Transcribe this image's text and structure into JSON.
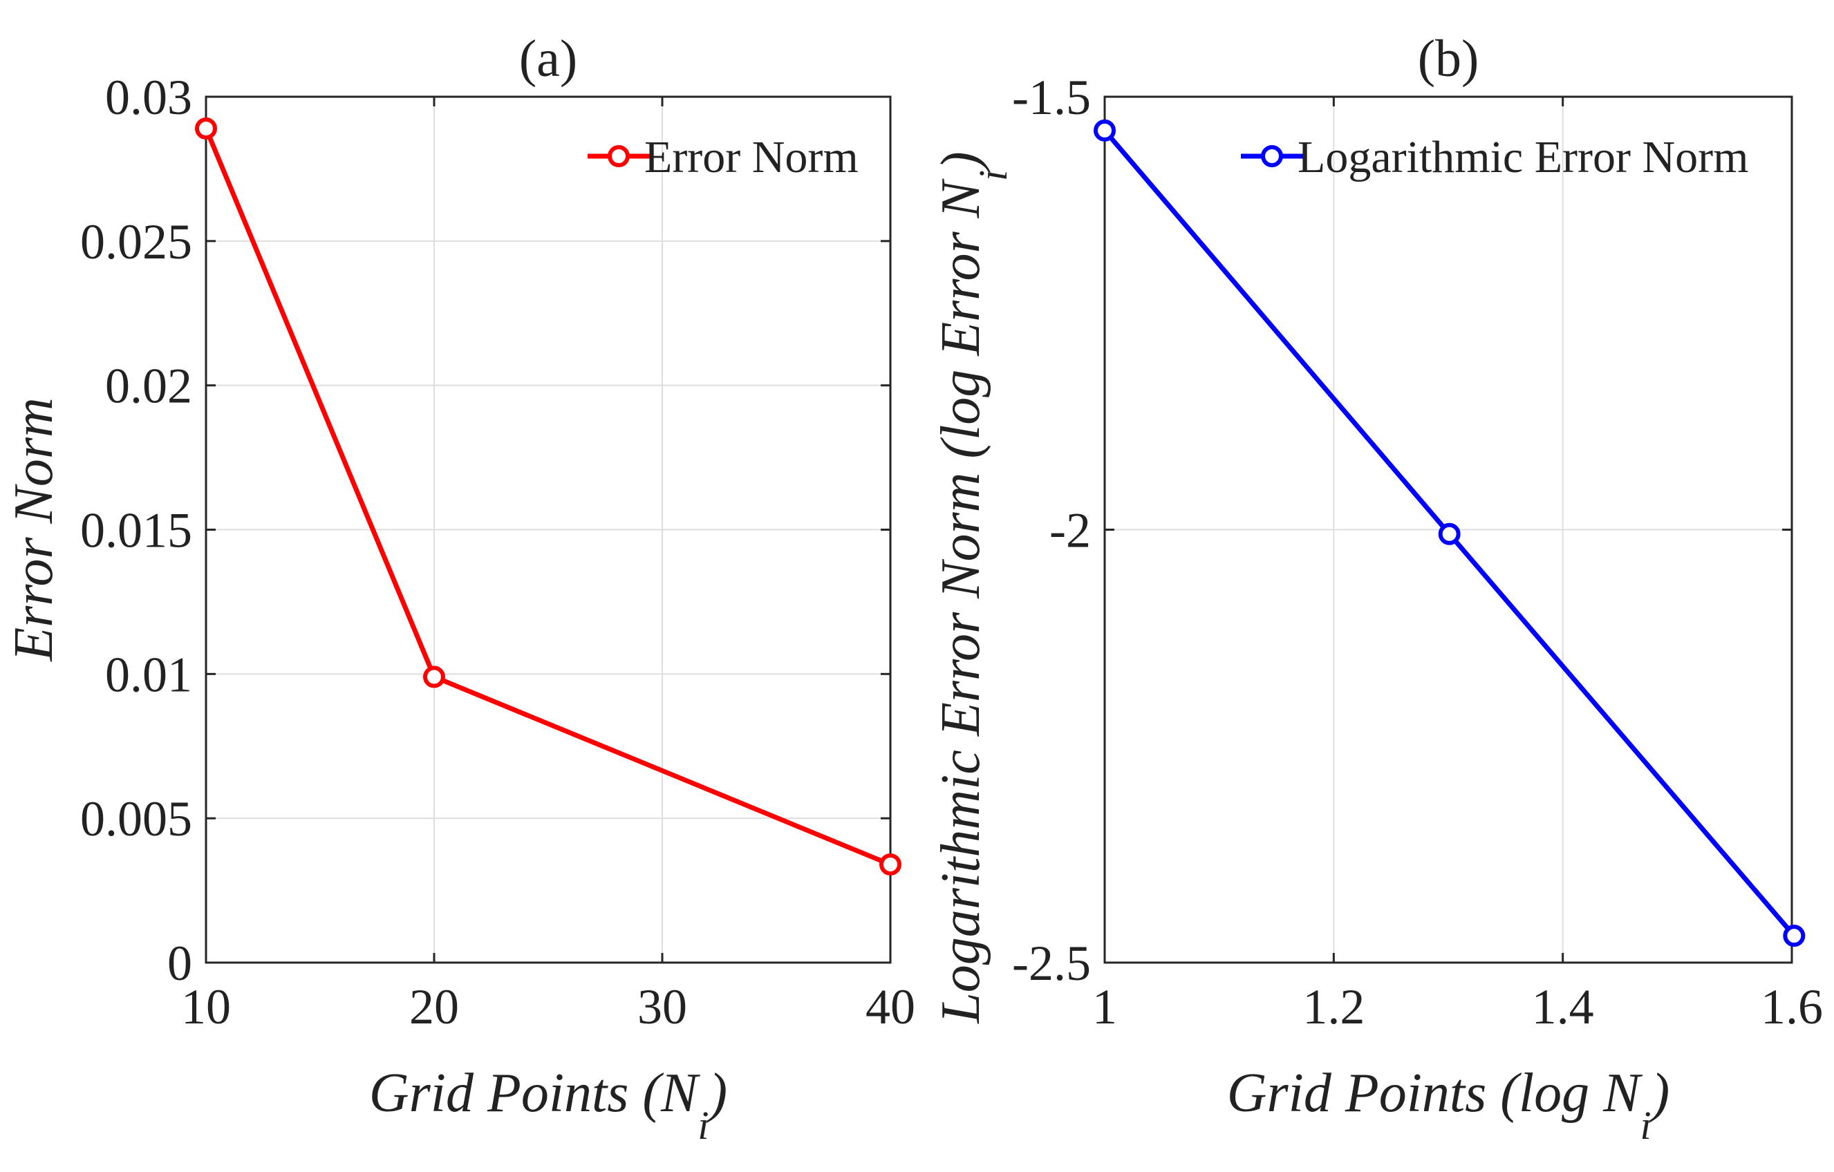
{
  "chart_data": [
    {
      "type": "line",
      "title": "(a)",
      "xlabel": "Grid Points (N",
      "xlabel_sub": "i",
      "xlabel_end": ")",
      "ylabel": "Error Norm",
      "xlim": [
        10,
        40
      ],
      "ylim": [
        0,
        0.03
      ],
      "xticks": [
        10,
        20,
        30,
        40
      ],
      "xtick_labels": [
        "10",
        "20",
        "30",
        "40"
      ],
      "yticks": [
        0,
        0.005,
        0.01,
        0.015,
        0.02,
        0.025,
        0.03
      ],
      "ytick_labels": [
        "0",
        "0.005",
        "0.01",
        "0.015",
        "0.02",
        "0.025",
        "0.03"
      ],
      "grid": true,
      "legend_position": "top-right",
      "series": [
        {
          "name": "Error Norm",
          "color": "#ff0000",
          "x": [
            10,
            20,
            40
          ],
          "y": [
            0.0289,
            0.0099,
            0.0034
          ]
        }
      ]
    },
    {
      "type": "line",
      "title": "(b)",
      "xlabel": "Grid Points (log N",
      "xlabel_sub": "i",
      "xlabel_end": ")",
      "ylabel": "Logarithmic Error Norm (log Error N",
      "ylabel_sub": "i",
      "ylabel_end": ")",
      "xlim": [
        1,
        1.6
      ],
      "ylim": [
        -2.5,
        -1.5
      ],
      "xticks": [
        1,
        1.2,
        1.4,
        1.6
      ],
      "xtick_labels": [
        "1",
        "1.2",
        "1.4",
        "1.6"
      ],
      "yticks": [
        -2.5,
        -2,
        -1.5
      ],
      "ytick_labels": [
        "-2.5",
        "-2",
        "-1.5"
      ],
      "grid": true,
      "legend_position": "top-right",
      "series": [
        {
          "name": "Logarithmic Error Norm",
          "color": "#0000ff",
          "x": [
            1.0,
            1.301,
            1.602
          ],
          "y": [
            -1.539,
            -2.005,
            -2.469
          ]
        }
      ]
    }
  ]
}
